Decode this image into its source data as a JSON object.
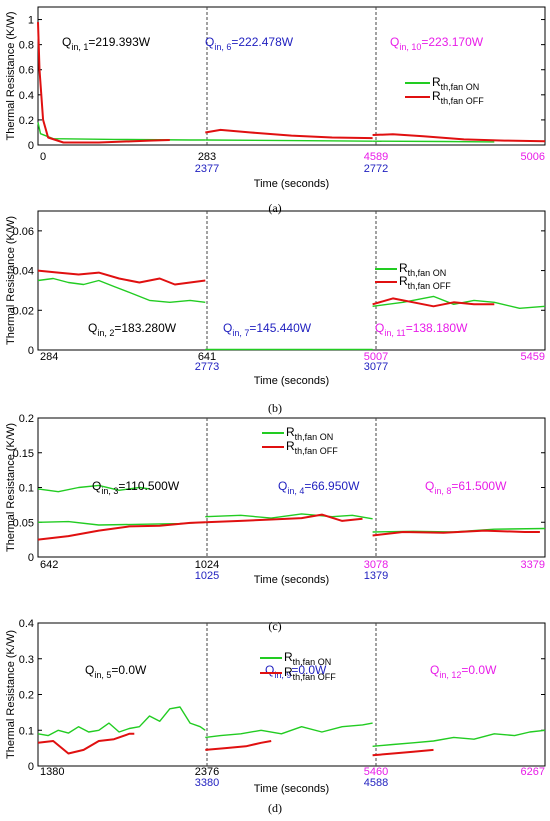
{
  "chart_data": [
    {
      "type": "line",
      "caption": "(a)",
      "ylabel": "Thermal Resistance (K/W)",
      "xlabel": "Time (seconds)",
      "ylim": [
        0,
        1.1
      ],
      "yticks": [
        "0",
        "0.2",
        "0.4",
        "0.6",
        "0.8",
        "1"
      ],
      "segment_labels": [
        {
          "main": "0",
          "sub": ""
        },
        {
          "main": "283",
          "sub": "2377"
        },
        {
          "main": "4589",
          "sub": "2772"
        },
        {
          "main": "5006",
          "sub": ""
        }
      ],
      "annotations": [
        {
          "base": "Q",
          "sub": "in, 1",
          "rest": "=219.393W",
          "color": "#000000"
        },
        {
          "base": "Q",
          "sub": "in, 6",
          "rest": "=222.478W",
          "color": "#1f1fbf"
        },
        {
          "base": "Q",
          "sub": "in, 10",
          "rest": "=223.170W",
          "color": "#e81ce8"
        }
      ],
      "legend": [
        {
          "base": "R",
          "sub": "th,fan ON",
          "color": "#22cc22"
        },
        {
          "base": "R",
          "sub": "th,fan OFF",
          "color": "#e01010"
        }
      ],
      "series": [
        {
          "name": "Rth,fan ON",
          "color": "#22cc22",
          "segments": [
            [
              [
                0,
                0.18
              ],
              [
                0.005,
                0.09
              ],
              [
                0.03,
                0.05
              ],
              [
                0.15,
                0.045
              ],
              [
                0.3,
                0.04
              ],
              [
                0.33,
                0.04
              ]
            ],
            [
              [
                0.33,
                0.04
              ],
              [
                0.5,
                0.035
              ],
              [
                0.66,
                0.03
              ]
            ],
            [
              [
                0.66,
                0.03
              ],
              [
                0.8,
                0.028
              ],
              [
                0.9,
                0.025
              ]
            ]
          ]
        },
        {
          "name": "Rth,fan OFF",
          "color": "#e01010",
          "segments": [
            [
              [
                0,
                0.98
              ],
              [
                0.003,
                0.6
              ],
              [
                0.01,
                0.2
              ],
              [
                0.02,
                0.06
              ],
              [
                0.05,
                0.02
              ],
              [
                0.12,
                0.02
              ],
              [
                0.22,
                0.035
              ],
              [
                0.26,
                0.04
              ]
            ],
            [
              [
                0.33,
                0.1
              ],
              [
                0.36,
                0.12
              ],
              [
                0.42,
                0.1
              ],
              [
                0.5,
                0.075
              ],
              [
                0.58,
                0.06
              ],
              [
                0.66,
                0.055
              ]
            ],
            [
              [
                0.66,
                0.08
              ],
              [
                0.7,
                0.085
              ],
              [
                0.76,
                0.07
              ],
              [
                0.84,
                0.045
              ],
              [
                0.92,
                0.035
              ],
              [
                1,
                0.03
              ]
            ]
          ]
        }
      ]
    },
    {
      "type": "line",
      "caption": "(b)",
      "ylabel": "Thermal Resistance (K/W)",
      "xlabel": "Time (seconds)",
      "ylim": [
        0,
        0.07
      ],
      "yticks": [
        "0",
        "0.02",
        "0.04",
        "0.06"
      ],
      "segment_labels": [
        {
          "main": "284",
          "sub": ""
        },
        {
          "main": "641",
          "sub": "2773"
        },
        {
          "main": "5007",
          "sub": "3077"
        },
        {
          "main": "5459",
          "sub": ""
        }
      ],
      "annotations": [
        {
          "base": "Q",
          "sub": "in, 2",
          "rest": "=183.280W",
          "color": "#000000"
        },
        {
          "base": "Q",
          "sub": "in, 7",
          "rest": "=145.440W",
          "color": "#1f1fbf"
        },
        {
          "base": "Q",
          "sub": "in, 11",
          "rest": "=138.180W",
          "color": "#e81ce8"
        }
      ],
      "legend": [
        {
          "base": "R",
          "sub": "th,fan ON",
          "color": "#22cc22"
        },
        {
          "base": "R",
          "sub": "th,fan OFF",
          "color": "#e01010"
        }
      ],
      "series": [
        {
          "name": "Rth,fan ON",
          "color": "#22cc22",
          "segments": [
            [
              [
                0,
                0.035
              ],
              [
                0.03,
                0.036
              ],
              [
                0.06,
                0.034
              ],
              [
                0.09,
                0.033
              ],
              [
                0.12,
                0.035
              ],
              [
                0.15,
                0.032
              ],
              [
                0.18,
                0.029
              ],
              [
                0.22,
                0.025
              ],
              [
                0.26,
                0.024
              ],
              [
                0.3,
                0.025
              ],
              [
                0.33,
                0.024
              ]
            ],
            [
              [
                0.33,
                0.0003
              ],
              [
                0.66,
                0.0003
              ]
            ],
            [
              [
                0.66,
                0.022
              ],
              [
                0.72,
                0.024
              ],
              [
                0.78,
                0.027
              ],
              [
                0.82,
                0.023
              ],
              [
                0.86,
                0.025
              ],
              [
                0.9,
                0.024
              ],
              [
                0.95,
                0.021
              ],
              [
                1,
                0.022
              ]
            ]
          ]
        },
        {
          "name": "Rth,fan OFF",
          "color": "#e01010",
          "segments": [
            [
              [
                0,
                0.04
              ],
              [
                0.04,
                0.039
              ],
              [
                0.08,
                0.038
              ],
              [
                0.12,
                0.039
              ],
              [
                0.16,
                0.036
              ],
              [
                0.2,
                0.034
              ],
              [
                0.24,
                0.036
              ],
              [
                0.27,
                0.033
              ],
              [
                0.3,
                0.034
              ],
              [
                0.33,
                0.035
              ]
            ],
            [
              [
                0.66,
                0.023
              ],
              [
                0.7,
                0.026
              ],
              [
                0.74,
                0.024
              ],
              [
                0.78,
                0.022
              ],
              [
                0.82,
                0.024
              ],
              [
                0.86,
                0.023
              ],
              [
                0.9,
                0.023
              ]
            ]
          ]
        }
      ]
    },
    {
      "type": "line",
      "caption": "(c)",
      "ylabel": "Thermal Resistance (K/W)",
      "xlabel": "Time (seconds)",
      "ylim": [
        0,
        0.2
      ],
      "yticks": [
        "0",
        "0.05",
        "0.1",
        "0.15",
        "0.2"
      ],
      "segment_labels": [
        {
          "main": "642",
          "sub": ""
        },
        {
          "main": "1024",
          "sub": "1025"
        },
        {
          "main": "3078",
          "sub": "1379"
        },
        {
          "main": "3379",
          "sub": ""
        }
      ],
      "annotations": [
        {
          "base": "Q",
          "sub": "in, 3",
          "rest": "=110.500W",
          "color": "#000000"
        },
        {
          "base": "Q",
          "sub": "in, 4",
          "rest": "=66.950W",
          "color": "#1f1fbf"
        },
        {
          "base": "Q",
          "sub": "in, 8",
          "rest": "=61.500W",
          "color": "#e81ce8"
        }
      ],
      "legend": [
        {
          "base": "R",
          "sub": "th,fan ON",
          "color": "#22cc22"
        },
        {
          "base": "R",
          "sub": "th,fan OFF",
          "color": "#e01010"
        }
      ],
      "series": [
        {
          "name": "Rth,fan ON",
          "color": "#22cc22",
          "segments": [
            [
              [
                0,
                0.098
              ],
              [
                0.04,
                0.094
              ],
              [
                0.08,
                0.1
              ],
              [
                0.12,
                0.103
              ],
              [
                0.16,
                0.096
              ],
              [
                0.2,
                0.1
              ],
              [
                0.22,
                0.098
              ]
            ],
            [
              [
                0,
                0.05
              ],
              [
                0.06,
                0.051
              ],
              [
                0.12,
                0.046
              ],
              [
                0.2,
                0.047
              ],
              [
                0.28,
                0.048
              ],
              [
                0.33,
                0.05
              ]
            ],
            [
              [
                0.33,
                0.058
              ],
              [
                0.4,
                0.06
              ],
              [
                0.46,
                0.056
              ],
              [
                0.52,
                0.062
              ],
              [
                0.58,
                0.058
              ],
              [
                0.62,
                0.06
              ],
              [
                0.66,
                0.055
              ]
            ],
            [
              [
                0.66,
                0.036
              ],
              [
                0.74,
                0.037
              ],
              [
                0.82,
                0.036
              ],
              [
                0.9,
                0.04
              ],
              [
                1,
                0.041
              ]
            ]
          ]
        },
        {
          "name": "Rth,fan OFF",
          "color": "#e01010",
          "segments": [
            [
              [
                0,
                0.025
              ],
              [
                0.06,
                0.03
              ],
              [
                0.12,
                0.038
              ],
              [
                0.18,
                0.044
              ],
              [
                0.24,
                0.045
              ],
              [
                0.3,
                0.049
              ],
              [
                0.33,
                0.05
              ]
            ],
            [
              [
                0.33,
                0.05
              ],
              [
                0.4,
                0.052
              ],
              [
                0.46,
                0.054
              ],
              [
                0.52,
                0.056
              ],
              [
                0.56,
                0.061
              ],
              [
                0.6,
                0.052
              ],
              [
                0.64,
                0.055
              ]
            ],
            [
              [
                0.66,
                0.031
              ],
              [
                0.72,
                0.036
              ],
              [
                0.8,
                0.035
              ],
              [
                0.88,
                0.038
              ],
              [
                0.96,
                0.036
              ],
              [
                0.99,
                0.036
              ]
            ]
          ]
        }
      ]
    },
    {
      "type": "line",
      "caption": "(d)",
      "ylabel": "Thermal Resistance (K/W)",
      "xlabel": "Time (seconds)",
      "ylim": [
        0,
        0.4
      ],
      "yticks": [
        "0",
        "0.1",
        "0.2",
        "0.3",
        "0.4"
      ],
      "segment_labels": [
        {
          "main": "1380",
          "sub": ""
        },
        {
          "main": "2376",
          "sub": "3380"
        },
        {
          "main": "5460",
          "sub": "4588"
        },
        {
          "main": "6267",
          "sub": ""
        }
      ],
      "annotations": [
        {
          "base": "Q",
          "sub": "in, 5",
          "rest": "=0.0W",
          "color": "#000000"
        },
        {
          "base": "Q",
          "sub": "in, 9",
          "rest": "=0.0W",
          "color": "#1f1fbf"
        },
        {
          "base": "Q",
          "sub": "in, 12",
          "rest": "=0.0W",
          "color": "#e81ce8"
        }
      ],
      "legend": [
        {
          "base": "R",
          "sub": "th,fan ON",
          "color": "#22cc22"
        },
        {
          "base": "R",
          "sub": "th,fan OFF",
          "color": "#e01010"
        }
      ],
      "series": [
        {
          "name": "Rth,fan ON",
          "color": "#22cc22",
          "segments": [
            [
              [
                0,
                0.09
              ],
              [
                0.02,
                0.085
              ],
              [
                0.04,
                0.1
              ],
              [
                0.06,
                0.092
              ],
              [
                0.08,
                0.11
              ],
              [
                0.1,
                0.095
              ],
              [
                0.12,
                0.1
              ],
              [
                0.14,
                0.12
              ],
              [
                0.16,
                0.095
              ],
              [
                0.18,
                0.105
              ],
              [
                0.2,
                0.11
              ],
              [
                0.22,
                0.14
              ],
              [
                0.24,
                0.125
              ],
              [
                0.26,
                0.16
              ],
              [
                0.28,
                0.165
              ],
              [
                0.3,
                0.12
              ],
              [
                0.32,
                0.11
              ],
              [
                0.33,
                0.1
              ]
            ],
            [
              [
                0.33,
                0.08
              ],
              [
                0.36,
                0.085
              ],
              [
                0.4,
                0.09
              ],
              [
                0.44,
                0.1
              ],
              [
                0.48,
                0.09
              ],
              [
                0.52,
                0.11
              ],
              [
                0.56,
                0.095
              ],
              [
                0.6,
                0.11
              ],
              [
                0.64,
                0.115
              ],
              [
                0.66,
                0.12
              ]
            ],
            [
              [
                0.66,
                0.055
              ],
              [
                0.7,
                0.06
              ],
              [
                0.74,
                0.065
              ],
              [
                0.78,
                0.07
              ],
              [
                0.82,
                0.08
              ],
              [
                0.86,
                0.075
              ],
              [
                0.9,
                0.09
              ],
              [
                0.94,
                0.085
              ],
              [
                0.97,
                0.095
              ],
              [
                1,
                0.1
              ]
            ]
          ]
        },
        {
          "name": "Rth,fan OFF",
          "color": "#e01010",
          "segments": [
            [
              [
                0,
                0.065
              ],
              [
                0.03,
                0.07
              ],
              [
                0.06,
                0.035
              ],
              [
                0.09,
                0.045
              ],
              [
                0.12,
                0.07
              ],
              [
                0.15,
                0.075
              ],
              [
                0.18,
                0.09
              ],
              [
                0.19,
                0.09
              ]
            ],
            [
              [
                0.33,
                0.045
              ],
              [
                0.37,
                0.05
              ],
              [
                0.41,
                0.055
              ],
              [
                0.44,
                0.065
              ],
              [
                0.46,
                0.07
              ]
            ],
            [
              [
                0.66,
                0.03
              ],
              [
                0.7,
                0.035
              ],
              [
                0.74,
                0.04
              ],
              [
                0.78,
                0.045
              ]
            ]
          ]
        }
      ]
    }
  ]
}
